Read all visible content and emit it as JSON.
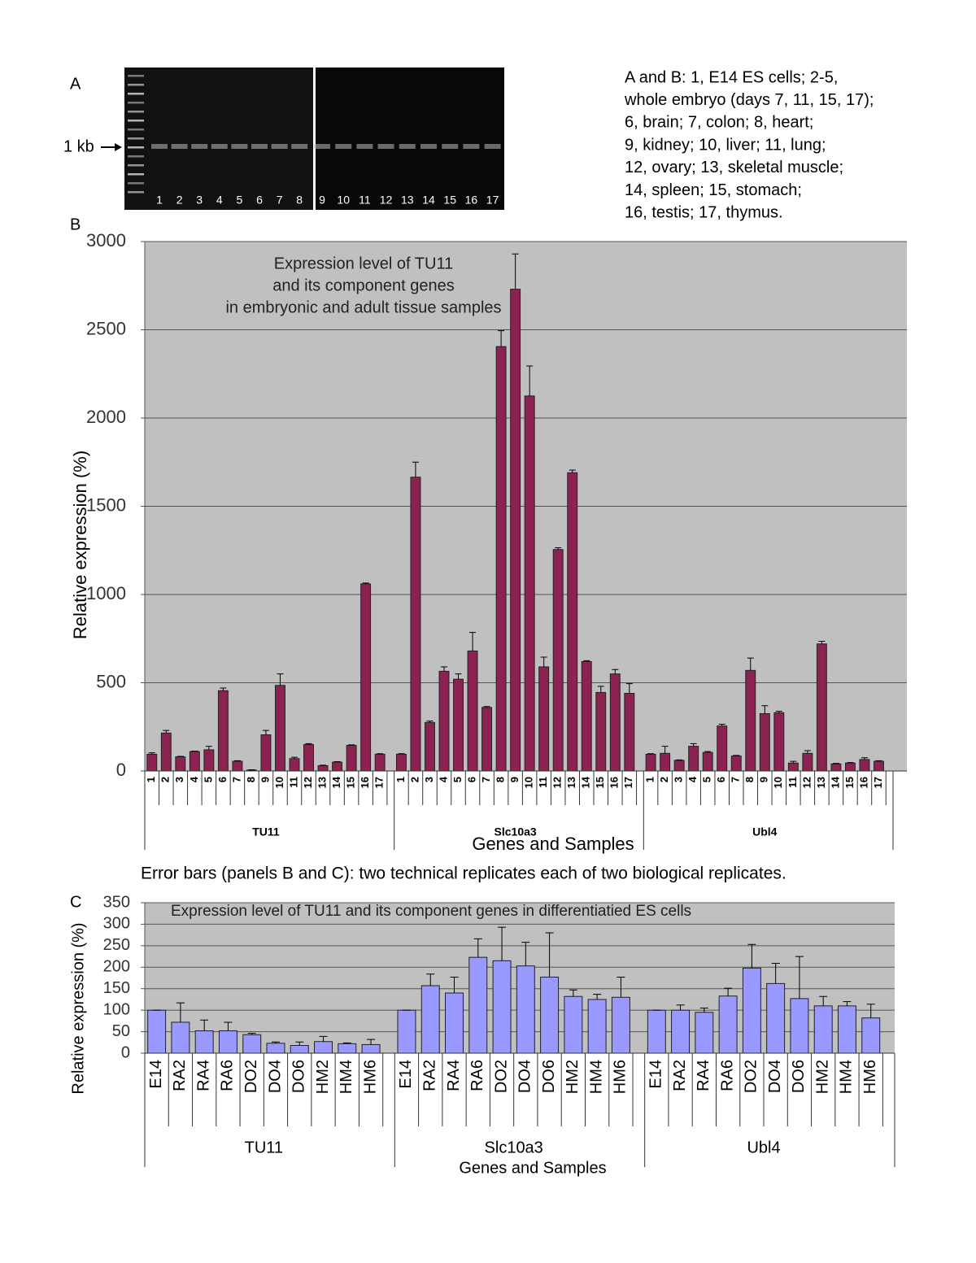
{
  "panel_a": {
    "label": "A",
    "marker": "1 kb",
    "lanes": [
      "1",
      "2",
      "3",
      "4",
      "5",
      "6",
      "7",
      "8",
      "9",
      "10",
      "11",
      "12",
      "13",
      "14",
      "15",
      "16",
      "17"
    ],
    "legend": [
      "A and B: 1, E14 ES cells; 2-5,",
      "whole embryo (days 7, 11, 15, 17);",
      "6, brain; 7, colon; 8, heart;",
      "9, kidney; 10, liver; 11, lung;",
      "12, ovary; 13, skeletal muscle;",
      "14, spleen; 15, stomach;",
      "16, testis; 17, thymus."
    ]
  },
  "note": "Error bars (panels B and C): two technical replicates each of two biological replicates.",
  "chart_data": [
    {
      "type": "bar",
      "label": "B",
      "title": [
        "Expression level of TU11",
        "and its component genes",
        "in embryonic and adult tissue samples"
      ],
      "y_label": "Relative expression (%)",
      "x_label": "Genes and Samples",
      "categories": [
        "1",
        "2",
        "3",
        "4",
        "5",
        "6",
        "7",
        "8",
        "9",
        "10",
        "11",
        "12",
        "13",
        "14",
        "15",
        "16",
        "17"
      ],
      "series": [
        {
          "name": "TU11",
          "values": [
            95,
            215,
            80,
            110,
            120,
            455,
            55,
            5,
            205,
            485,
            70,
            150,
            30,
            50,
            145,
            1060,
            95
          ],
          "errors": [
            8,
            15,
            3,
            3,
            20,
            15,
            3,
            2,
            25,
            65,
            8,
            5,
            3,
            3,
            3,
            5,
            3
          ]
        },
        {
          "name": "Slc10a3",
          "values": [
            95,
            1665,
            275,
            565,
            520,
            680,
            360,
            2405,
            2730,
            2125,
            590,
            1255,
            1690,
            620,
            445,
            550,
            440
          ],
          "errors": [
            3,
            85,
            8,
            25,
            30,
            105,
            5,
            90,
            200,
            170,
            55,
            10,
            15,
            5,
            35,
            25,
            55
          ]
        },
        {
          "name": "Ubl4",
          "values": [
            95,
            100,
            60,
            140,
            105,
            255,
            85,
            570,
            325,
            330,
            45,
            100,
            720,
            40,
            45,
            65,
            55
          ],
          "errors": [
            3,
            40,
            3,
            15,
            5,
            10,
            3,
            70,
            45,
            8,
            10,
            15,
            15,
            3,
            3,
            10,
            3
          ]
        }
      ],
      "color": "#8b2252",
      "ylim": [
        0,
        3000
      ],
      "yticks": [
        0,
        500,
        1000,
        1500,
        2000,
        2500,
        3000
      ],
      "grid": true
    },
    {
      "type": "bar",
      "label": "C",
      "title": [
        "Expression level of TU11 and its component genes in differentiatied ES cells"
      ],
      "y_label": "Relative expression (%)",
      "x_label": "Genes and Samples",
      "categories": [
        "E14",
        "RA2",
        "RA4",
        "RA6",
        "DO2",
        "DO4",
        "DO6",
        "HM2",
        "HM4",
        "HM6"
      ],
      "series": [
        {
          "name": "TU11",
          "values": [
            100,
            72,
            52,
            52,
            43,
            23,
            18,
            27,
            22,
            20
          ],
          "errors": [
            0,
            45,
            25,
            20,
            3,
            3,
            8,
            12,
            2,
            12
          ]
        },
        {
          "name": "Slc10a3",
          "values": [
            100,
            157,
            140,
            223,
            215,
            203,
            177,
            132,
            125,
            130
          ],
          "errors": [
            0,
            27,
            37,
            43,
            78,
            55,
            103,
            15,
            12,
            47
          ]
        },
        {
          "name": "Ubl4",
          "values": [
            100,
            100,
            95,
            133,
            198,
            162,
            127,
            110,
            110,
            82
          ],
          "errors": [
            0,
            12,
            10,
            18,
            55,
            47,
            98,
            22,
            10,
            32
          ]
        }
      ],
      "color": "#9999ff",
      "ylim": [
        0,
        350
      ],
      "yticks": [
        0,
        50,
        100,
        150,
        200,
        250,
        300,
        350
      ],
      "grid": true
    }
  ]
}
